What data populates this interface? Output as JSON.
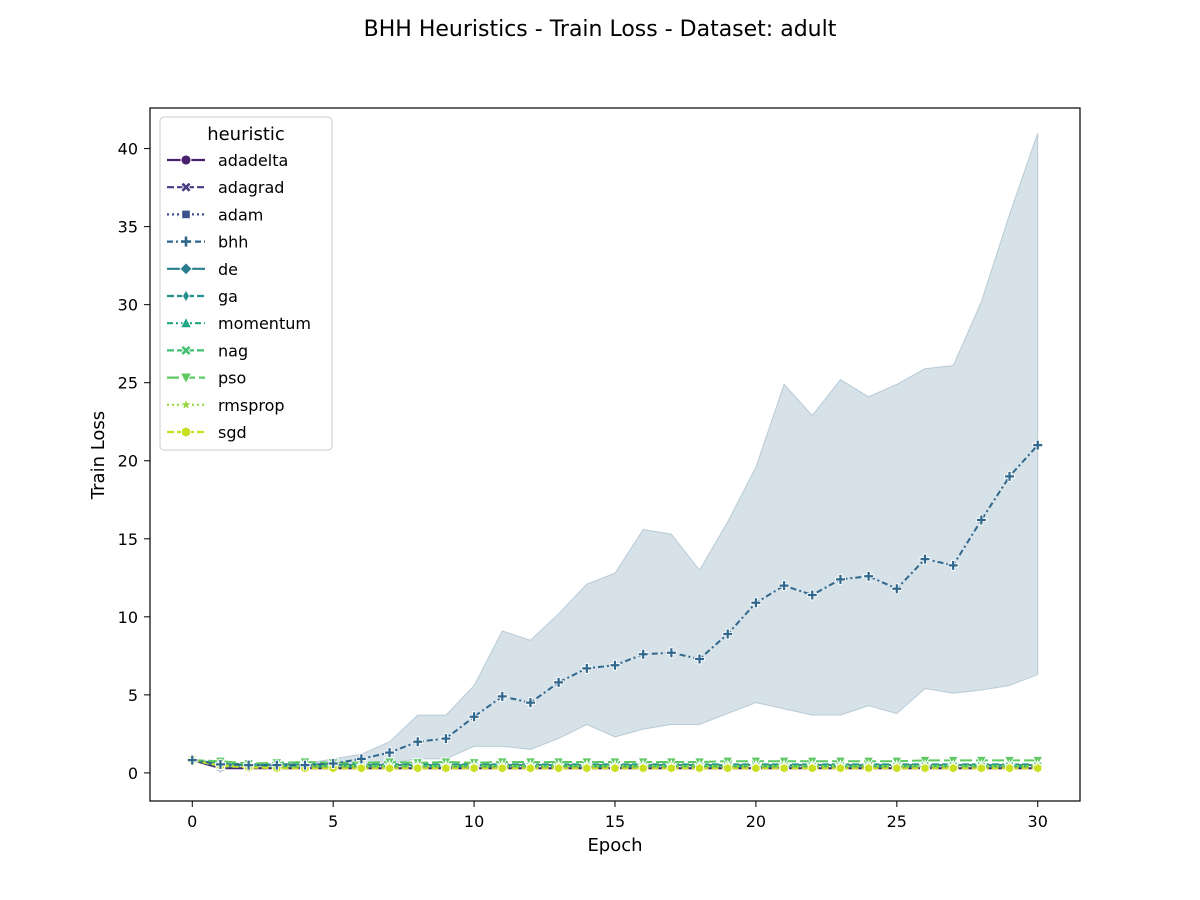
{
  "chart_data": {
    "type": "line",
    "title": "BHH Heuristics - Train Loss - Dataset: adult",
    "xlabel": "Epoch",
    "ylabel": "Train Loss",
    "xlim": [
      -1.5,
      31.5
    ],
    "ylim": [
      -1.8,
      42.6
    ],
    "xticks": [
      0,
      5,
      10,
      15,
      20,
      25,
      30
    ],
    "yticks": [
      0,
      5,
      10,
      15,
      20,
      25,
      30,
      35,
      40
    ],
    "grid": false,
    "legend": {
      "title": "heuristic",
      "position": "top-left"
    },
    "x": [
      0,
      1,
      2,
      3,
      4,
      5,
      6,
      7,
      8,
      9,
      10,
      11,
      12,
      13,
      14,
      15,
      16,
      17,
      18,
      19,
      20,
      21,
      22,
      23,
      24,
      25,
      26,
      27,
      28,
      29,
      30
    ],
    "series": [
      {
        "name": "adadelta",
        "color": "#471f6d",
        "dash": "solid",
        "marker": "circle",
        "values": [
          0.82,
          0.3,
          0.3,
          0.3,
          0.3,
          0.3,
          0.3,
          0.3,
          0.3,
          0.3,
          0.3,
          0.3,
          0.3,
          0.3,
          0.3,
          0.3,
          0.3,
          0.3,
          0.3,
          0.3,
          0.3,
          0.3,
          0.3,
          0.3,
          0.3,
          0.3,
          0.3,
          0.3,
          0.3,
          0.3,
          0.3
        ]
      },
      {
        "name": "adagrad",
        "color": "#453b83",
        "dash": "dashed",
        "marker": "x-thick",
        "values": [
          0.82,
          0.35,
          0.38,
          0.38,
          0.38,
          0.38,
          0.38,
          0.38,
          0.38,
          0.38,
          0.38,
          0.38,
          0.38,
          0.38,
          0.38,
          0.38,
          0.38,
          0.38,
          0.38,
          0.38,
          0.38,
          0.38,
          0.38,
          0.38,
          0.38,
          0.38,
          0.38,
          0.38,
          0.38,
          0.38,
          0.38
        ]
      },
      {
        "name": "adam",
        "color": "#3a528b",
        "dash": "dotted",
        "marker": "square",
        "values": [
          0.82,
          0.35,
          0.35,
          0.35,
          0.35,
          0.35,
          0.35,
          0.35,
          0.35,
          0.35,
          0.35,
          0.35,
          0.35,
          0.35,
          0.35,
          0.35,
          0.35,
          0.35,
          0.35,
          0.35,
          0.35,
          0.35,
          0.35,
          0.35,
          0.35,
          0.35,
          0.35,
          0.35,
          0.35,
          0.35,
          0.35
        ]
      },
      {
        "name": "bhh",
        "color": "#30678d",
        "dash": "dashdot",
        "marker": "plus",
        "values": [
          0.82,
          0.55,
          0.5,
          0.5,
          0.5,
          0.6,
          0.9,
          1.3,
          2.0,
          2.2,
          3.6,
          4.9,
          4.5,
          5.8,
          6.7,
          6.9,
          7.6,
          7.7,
          7.3,
          8.9,
          10.9,
          12.0,
          11.4,
          12.4,
          12.6,
          11.8,
          13.7,
          13.3,
          16.2,
          19.0,
          21.0
        ],
        "band_low": [
          0.82,
          0.35,
          0.35,
          0.35,
          0.35,
          0.35,
          0.35,
          0.6,
          0.9,
          0.9,
          1.7,
          1.7,
          1.5,
          2.2,
          3.1,
          2.3,
          2.8,
          3.1,
          3.1,
          3.8,
          4.5,
          4.1,
          3.7,
          3.7,
          4.3,
          3.8,
          5.4,
          5.1,
          5.3,
          5.6,
          6.3
        ],
        "band_high": [
          0.82,
          0.6,
          0.6,
          0.6,
          0.6,
          0.9,
          1.2,
          2.0,
          3.7,
          3.7,
          5.6,
          9.1,
          8.5,
          10.2,
          12.1,
          12.8,
          15.6,
          15.3,
          13.0,
          16.1,
          19.6,
          24.9,
          22.9,
          25.2,
          24.1,
          24.9,
          25.9,
          26.1,
          30.2,
          35.8,
          41.0
        ]
      },
      {
        "name": "de",
        "color": "#287d8e",
        "dash": "solid",
        "marker": "diamond",
        "values": [
          0.82,
          0.55,
          0.5,
          0.5,
          0.5,
          0.5,
          0.5,
          0.5,
          0.5,
          0.5,
          0.5,
          0.5,
          0.5,
          0.5,
          0.5,
          0.5,
          0.5,
          0.5,
          0.5,
          0.5,
          0.5,
          0.5,
          0.5,
          0.5,
          0.5,
          0.5,
          0.5,
          0.5,
          0.5,
          0.5,
          0.5
        ]
      },
      {
        "name": "ga",
        "color": "#21908c",
        "dash": "dashed",
        "marker": "thin-diamond",
        "values": [
          0.82,
          0.6,
          0.55,
          0.55,
          0.55,
          0.55,
          0.55,
          0.55,
          0.55,
          0.55,
          0.55,
          0.55,
          0.55,
          0.55,
          0.55,
          0.55,
          0.55,
          0.55,
          0.55,
          0.55,
          0.55,
          0.55,
          0.55,
          0.55,
          0.55,
          0.55,
          0.55,
          0.55,
          0.55,
          0.55,
          0.55
        ]
      },
      {
        "name": "momentum",
        "color": "#22a884",
        "dash": "dashdot",
        "marker": "triangle-up",
        "values": [
          0.82,
          0.45,
          0.4,
          0.4,
          0.4,
          0.4,
          0.4,
          0.4,
          0.4,
          0.4,
          0.4,
          0.4,
          0.4,
          0.4,
          0.4,
          0.4,
          0.4,
          0.4,
          0.4,
          0.4,
          0.4,
          0.4,
          0.4,
          0.4,
          0.4,
          0.4,
          0.4,
          0.4,
          0.4,
          0.4,
          0.4
        ]
      },
      {
        "name": "nag",
        "color": "#44bf70",
        "dash": "dashed",
        "marker": "x-filled",
        "values": [
          0.82,
          0.5,
          0.45,
          0.45,
          0.45,
          0.45,
          0.45,
          0.45,
          0.45,
          0.45,
          0.45,
          0.45,
          0.45,
          0.45,
          0.45,
          0.45,
          0.45,
          0.45,
          0.45,
          0.45,
          0.45,
          0.45,
          0.45,
          0.45,
          0.45,
          0.45,
          0.45,
          0.45,
          0.45,
          0.45,
          0.45
        ]
      },
      {
        "name": "pso",
        "color": "#5ec962",
        "dash": "longdash",
        "marker": "triangle-down",
        "values": [
          0.82,
          0.75,
          0.6,
          0.65,
          0.7,
          0.65,
          0.65,
          0.7,
          0.65,
          0.7,
          0.65,
          0.7,
          0.7,
          0.7,
          0.7,
          0.7,
          0.7,
          0.7,
          0.7,
          0.75,
          0.75,
          0.75,
          0.75,
          0.75,
          0.75,
          0.75,
          0.8,
          0.8,
          0.8,
          0.8,
          0.8
        ]
      },
      {
        "name": "rmsprop",
        "color": "#95d840",
        "dash": "dotted",
        "marker": "star",
        "values": [
          0.82,
          0.5,
          0.45,
          0.45,
          0.45,
          0.45,
          0.45,
          0.45,
          0.45,
          0.45,
          0.45,
          0.45,
          0.45,
          0.45,
          0.45,
          0.45,
          0.45,
          0.45,
          0.45,
          0.45,
          0.45,
          0.45,
          0.45,
          0.45,
          0.45,
          0.45,
          0.45,
          0.45,
          0.45,
          0.45,
          0.45
        ]
      },
      {
        "name": "sgd",
        "color": "#c8e020",
        "dash": "dashed",
        "marker": "hexagon",
        "values": [
          0.82,
          0.45,
          0.35,
          0.3,
          0.3,
          0.3,
          0.3,
          0.3,
          0.3,
          0.3,
          0.3,
          0.3,
          0.3,
          0.3,
          0.3,
          0.3,
          0.3,
          0.3,
          0.3,
          0.3,
          0.3,
          0.3,
          0.3,
          0.3,
          0.3,
          0.3,
          0.3,
          0.3,
          0.3,
          0.3,
          0.3
        ]
      }
    ]
  }
}
